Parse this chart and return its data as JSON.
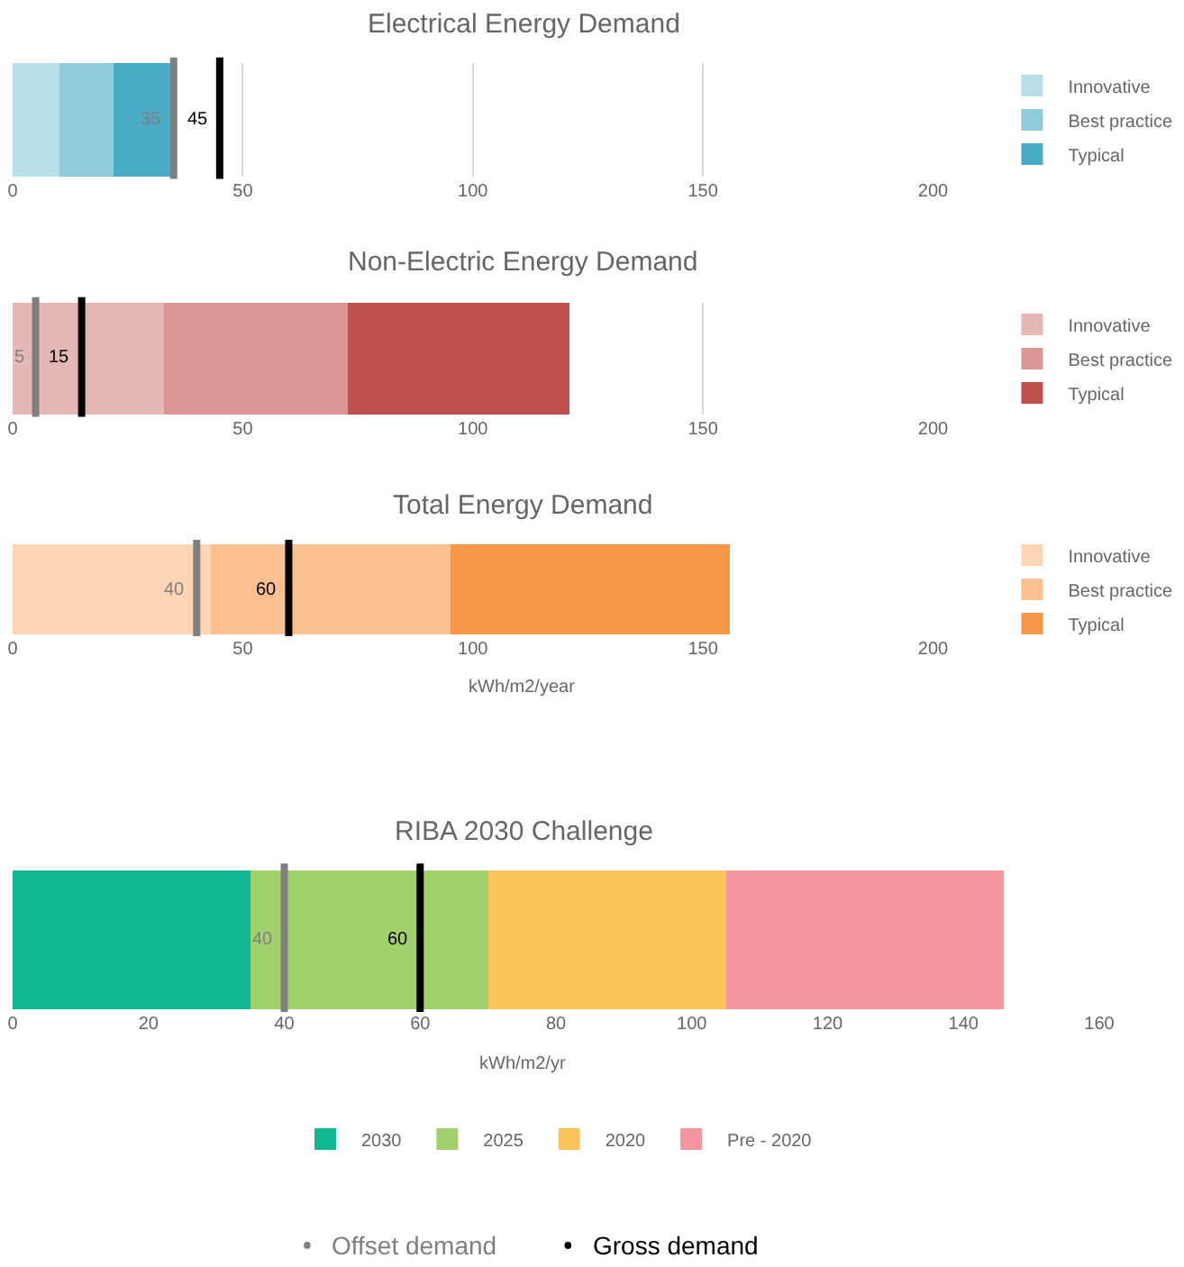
{
  "chart_data": [
    {
      "type": "bar",
      "title": "Electrical Energy Demand",
      "orientation": "horizontal",
      "stacked": true,
      "categories": [
        null
      ],
      "xlim": [
        0,
        200
      ],
      "xticks": [
        0,
        50,
        100,
        150,
        200
      ],
      "grid": "x",
      "legend": "right",
      "tick_labels": "x",
      "series": [
        {
          "name": "Innovative",
          "color": "#b7dfe8",
          "values": [
            10
          ]
        },
        {
          "name": "Best practice",
          "color": "#8fcbdb",
          "values": [
            12
          ]
        },
        {
          "name": "Typical",
          "color": "#4aabc6",
          "values": [
            13
          ]
        }
      ],
      "ref_lines": [
        {
          "axis": "x",
          "value": 35,
          "label": "35",
          "color": "#808080"
        },
        {
          "axis": "x",
          "value": 45,
          "label": "45",
          "color": "#000000"
        }
      ]
    },
    {
      "type": "bar",
      "title": "Non-Electric Energy Demand",
      "orientation": "horizontal",
      "stacked": true,
      "categories": [
        null
      ],
      "xlim": [
        0,
        200
      ],
      "xticks": [
        0,
        50,
        100,
        150,
        200
      ],
      "grid": "x",
      "legend": "right",
      "tick_labels": "x",
      "series": [
        {
          "name": "Innovative",
          "color": "#e5b8b7",
          "values": [
            33
          ]
        },
        {
          "name": "Best practice",
          "color": "#d99694",
          "values": [
            40
          ]
        },
        {
          "name": "Typical",
          "color": "#c0504d",
          "values": [
            48
          ]
        }
      ],
      "ref_lines": [
        {
          "axis": "x",
          "value": 5,
          "label": "5",
          "color": "#808080"
        },
        {
          "axis": "x",
          "value": 15,
          "label": "15",
          "color": "#000000"
        }
      ]
    },
    {
      "type": "bar",
      "title": "Total Energy Demand",
      "xlabel": "kWh/m2/year",
      "orientation": "horizontal",
      "stacked": true,
      "categories": [
        null
      ],
      "xlim": [
        0,
        200
      ],
      "xticks": [
        0,
        50,
        100,
        150,
        200
      ],
      "grid": "x",
      "legend": "right",
      "tick_labels": "x",
      "series": [
        {
          "name": "Innovative",
          "color": "#fcd5b5",
          "values": [
            43
          ]
        },
        {
          "name": "Best practice",
          "color": "#fac090",
          "values": [
            52
          ]
        },
        {
          "name": "Typical",
          "color": "#f79646",
          "values": [
            61
          ]
        }
      ],
      "ref_lines": [
        {
          "axis": "x",
          "value": 40,
          "label": "40",
          "color": "#808080"
        },
        {
          "axis": "x",
          "value": 60,
          "label": "60",
          "color": "#000000"
        }
      ]
    },
    {
      "type": "bar",
      "title": "RIBA 2030 Challenge",
      "xlabel": "kWh/m2/yr",
      "orientation": "horizontal",
      "stacked": true,
      "categories": [
        null
      ],
      "xlim": [
        0,
        160
      ],
      "xticks": [
        0,
        20,
        40,
        60,
        80,
        100,
        120,
        140,
        160
      ],
      "grid": "x",
      "legend": "bottom",
      "tick_labels": "x",
      "series": [
        {
          "name": "2030",
          "color": "#12b894",
          "values": [
            35
          ]
        },
        {
          "name": "2025",
          "color": "#a2d16c",
          "values": [
            35
          ]
        },
        {
          "name": "2020",
          "color": "#fdc45b",
          "values": [
            35
          ]
        },
        {
          "name": "Pre - 2020",
          "color": "#f4949e",
          "values": [
            41
          ]
        }
      ],
      "ref_lines": [
        {
          "axis": "x",
          "value": 40,
          "label": "40",
          "color": "#808080"
        },
        {
          "axis": "x",
          "value": 60,
          "label": "60",
          "color": "#000000"
        }
      ],
      "annotations": [
        "Offset demand",
        "Gross demand"
      ]
    }
  ]
}
